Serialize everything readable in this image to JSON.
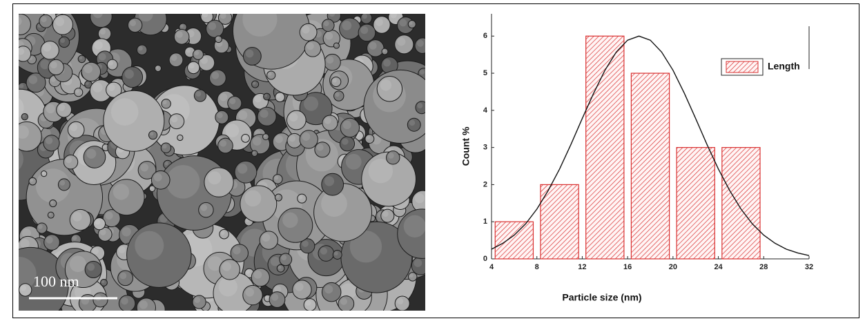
{
  "image": {
    "scale_label": "100 nm"
  },
  "chart_data": {
    "type": "histogram",
    "xlabel": "Particle size (nm)",
    "ylabel": "Count %",
    "bins": [
      4,
      8,
      12,
      16,
      20,
      24,
      28
    ],
    "series": [
      {
        "name": "Length",
        "color": "#d93030",
        "values": [
          1,
          2,
          6,
          5,
          3,
          3
        ]
      }
    ],
    "fit": {
      "color": "#111111",
      "x": [
        4,
        5,
        6,
        7,
        8,
        9,
        10,
        11,
        12,
        13,
        14,
        15,
        16,
        17,
        18,
        19,
        20,
        21,
        22,
        23,
        24,
        25,
        26,
        27,
        28,
        29,
        30,
        31,
        32
      ],
      "values": [
        0.26,
        0.42,
        0.64,
        0.94,
        1.34,
        1.84,
        2.42,
        3.08,
        3.78,
        4.46,
        5.08,
        5.57,
        5.89,
        6,
        5.89,
        5.57,
        5.08,
        4.46,
        3.78,
        3.08,
        2.42,
        1.84,
        1.34,
        0.94,
        0.64,
        0.42,
        0.26,
        0.16,
        0.09
      ]
    },
    "xlim": [
      4,
      32
    ],
    "ylim": [
      0,
      6.6
    ],
    "xticks": [
      4,
      8,
      12,
      16,
      20,
      24,
      28,
      32
    ],
    "yticks": [
      0,
      1,
      2,
      3,
      4,
      5,
      6
    ],
    "legend": "upper right"
  }
}
